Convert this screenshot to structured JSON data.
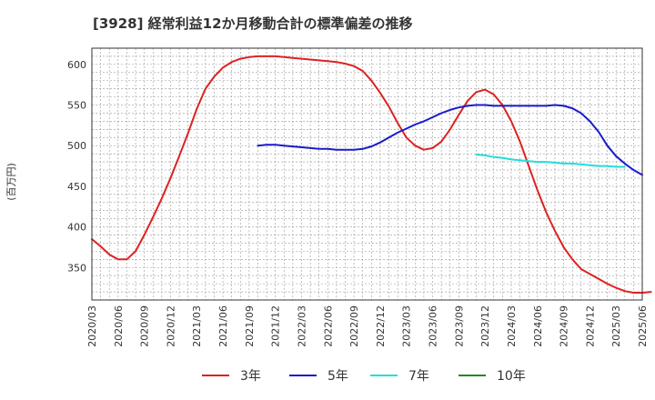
{
  "chart_data": {
    "type": "line",
    "title": "[3928]  経常利益12か月移動合計の標準偏差の推移",
    "ylabel": "(百万円)",
    "xlabel": "",
    "ylim": [
      310,
      620
    ],
    "yticks": [
      350,
      400,
      450,
      500,
      550,
      600
    ],
    "x_start": "2020-03",
    "x_end": "2025-06",
    "x_tick_labels": [
      "2020/03",
      "2020/06",
      "2020/09",
      "2020/12",
      "2021/03",
      "2021/06",
      "2021/09",
      "2021/12",
      "2022/03",
      "2022/06",
      "2022/09",
      "2022/12",
      "2023/03",
      "2023/06",
      "2023/09",
      "2023/12",
      "2024/03",
      "2024/06",
      "2024/09",
      "2024/12",
      "2025/03",
      "2025/06"
    ],
    "grid": true,
    "legend_position": "bottom",
    "series": [
      {
        "name": "3年",
        "color": "#dd2222",
        "start": "2020-03",
        "values": [
          385,
          376,
          366,
          360,
          360,
          370,
          390,
          412,
          435,
          460,
          487,
          515,
          545,
          570,
          585,
          596,
          603,
          607,
          609,
          610,
          610,
          610,
          609,
          608,
          607,
          606,
          605,
          604,
          603,
          601,
          598,
          592,
          580,
          565,
          548,
          528,
          510,
          500,
          495,
          497,
          505,
          520,
          538,
          555,
          566,
          569,
          563,
          550,
          530,
          505,
          475,
          445,
          418,
          395,
          375,
          360,
          348,
          342,
          336,
          330,
          325,
          321,
          319,
          319,
          320
        ]
      },
      {
        "name": "5年",
        "color": "#1a1acc",
        "start": "2021-10",
        "values": [
          500,
          501,
          501,
          500,
          499,
          498,
          497,
          496,
          496,
          495,
          495,
          495,
          496,
          499,
          504,
          510,
          516,
          521,
          526,
          530,
          535,
          540,
          544,
          547,
          549,
          550,
          550,
          549,
          549,
          549,
          549,
          549,
          549,
          549,
          550,
          549,
          546,
          540,
          530,
          517,
          500,
          487,
          478,
          470,
          464
        ]
      },
      {
        "name": "7年",
        "color": "#22dddd",
        "start": "2023-11",
        "values": [
          489,
          488,
          486,
          485,
          483,
          482,
          481,
          480,
          480,
          479,
          478,
          478,
          477,
          476,
          475,
          475,
          474,
          474
        ]
      },
      {
        "name": "10年",
        "color": "#228822",
        "start": "",
        "values": []
      }
    ]
  }
}
